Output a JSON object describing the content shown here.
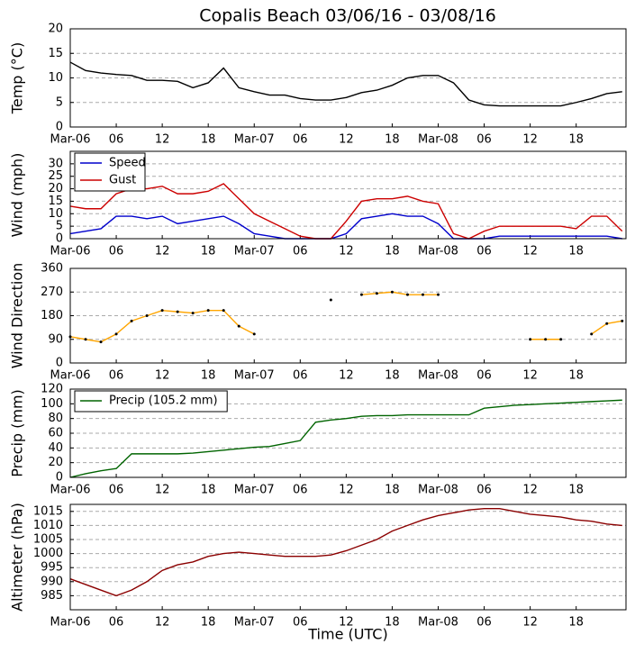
{
  "chart_data": [
    {
      "type": "line",
      "title": "Copalis Beach 03/06/16 - 03/08/16",
      "ylabel": "Temp (°C)",
      "x": [
        0,
        2,
        4,
        6,
        8,
        10,
        12,
        14,
        16,
        18,
        20,
        22,
        24,
        26,
        28,
        30,
        32,
        34,
        36,
        38,
        40,
        42,
        44,
        46,
        48,
        50,
        52,
        54,
        56,
        58,
        60,
        62,
        64,
        66,
        68,
        70,
        72
      ],
      "xlim": [
        0,
        72.5
      ],
      "xticks": [
        {
          "value": 0,
          "label": "Mar-06"
        },
        {
          "value": 6,
          "label": "06"
        },
        {
          "value": 12,
          "label": "12"
        },
        {
          "value": 18,
          "label": "18"
        },
        {
          "value": 24,
          "label": "Mar-07"
        },
        {
          "value": 30,
          "label": "06"
        },
        {
          "value": 36,
          "label": "12"
        },
        {
          "value": 42,
          "label": "18"
        },
        {
          "value": 48,
          "label": "Mar-08"
        },
        {
          "value": 54,
          "label": "06"
        },
        {
          "value": 60,
          "label": "12"
        },
        {
          "value": 66,
          "label": "18"
        }
      ],
      "ylim": [
        0,
        20
      ],
      "yticks": [
        0,
        5,
        10,
        15,
        20
      ],
      "grid": true,
      "series": [
        {
          "name": "Temp",
          "color": "#000000",
          "values": [
            13.2,
            11.5,
            11,
            10.7,
            10.5,
            9.5,
            9.5,
            9.3,
            8,
            9,
            12,
            8,
            7.2,
            6.5,
            6.5,
            5.8,
            5.5,
            5.5,
            6,
            7,
            7.5,
            8.5,
            10,
            10.5,
            10.5,
            9,
            5.5,
            4.5,
            4.3,
            4.3,
            4.3,
            4.3,
            4.3,
            5,
            5.8,
            6.8,
            7.2
          ]
        }
      ]
    },
    {
      "type": "line",
      "ylabel": "Wind (mph)",
      "legend": "upper left",
      "x": [
        0,
        2,
        4,
        6,
        8,
        10,
        12,
        14,
        16,
        18,
        20,
        22,
        24,
        26,
        28,
        30,
        32,
        34,
        36,
        38,
        40,
        42,
        44,
        46,
        48,
        50,
        52,
        54,
        56,
        58,
        60,
        62,
        64,
        66,
        68,
        70,
        72
      ],
      "xlim": [
        0,
        72.5
      ],
      "xticks": [
        {
          "value": 0,
          "label": "Mar-06"
        },
        {
          "value": 6,
          "label": "06"
        },
        {
          "value": 12,
          "label": "12"
        },
        {
          "value": 18,
          "label": "18"
        },
        {
          "value": 24,
          "label": "Mar-07"
        },
        {
          "value": 30,
          "label": "06"
        },
        {
          "value": 36,
          "label": "12"
        },
        {
          "value": 42,
          "label": "18"
        },
        {
          "value": 48,
          "label": "Mar-08"
        },
        {
          "value": 54,
          "label": "06"
        },
        {
          "value": 60,
          "label": "12"
        },
        {
          "value": 66,
          "label": "18"
        }
      ],
      "ylim": [
        0,
        35
      ],
      "yticks": [
        0,
        5,
        10,
        15,
        20,
        25,
        30
      ],
      "grid": true,
      "series": [
        {
          "name": "Speed",
          "color": "#0000cc",
          "values": [
            2,
            3,
            4,
            9,
            9,
            8,
            9,
            6,
            7,
            8,
            9,
            6,
            2,
            1,
            0,
            0,
            0,
            0,
            2,
            8,
            9,
            10,
            9,
            9,
            6,
            0,
            0,
            0,
            1,
            1,
            1,
            1,
            1,
            1,
            1,
            1,
            0
          ]
        },
        {
          "name": "Gust",
          "color": "#cc0000",
          "values": [
            13,
            12,
            12,
            18,
            20,
            20,
            21,
            18,
            18,
            19,
            22,
            16,
            10,
            7,
            4,
            1,
            0,
            0,
            7,
            15,
            16,
            16,
            17,
            15,
            14,
            2,
            0,
            3,
            5,
            5,
            5,
            5,
            5,
            4,
            9,
            9,
            3
          ]
        }
      ]
    },
    {
      "type": "line",
      "ylabel": "Wind Direction",
      "markers": true,
      "x": [
        0,
        2,
        4,
        6,
        8,
        10,
        12,
        14,
        16,
        18,
        20,
        22,
        24,
        26,
        28,
        30,
        32,
        34,
        36,
        38,
        40,
        42,
        44,
        46,
        48,
        50,
        52,
        54,
        56,
        58,
        60,
        62,
        64,
        66,
        68,
        70,
        72
      ],
      "xlim": [
        0,
        72.5
      ],
      "xticks": [
        {
          "value": 0,
          "label": "Mar-06"
        },
        {
          "value": 6,
          "label": "06"
        },
        {
          "value": 12,
          "label": "12"
        },
        {
          "value": 18,
          "label": "18"
        },
        {
          "value": 24,
          "label": "Mar-07"
        },
        {
          "value": 30,
          "label": "06"
        },
        {
          "value": 36,
          "label": "12"
        },
        {
          "value": 42,
          "label": "18"
        },
        {
          "value": 48,
          "label": "Mar-08"
        },
        {
          "value": 54,
          "label": "06"
        },
        {
          "value": 60,
          "label": "12"
        },
        {
          "value": 66,
          "label": "18"
        }
      ],
      "ylim": [
        0,
        360
      ],
      "yticks": [
        0,
        90,
        180,
        270,
        360
      ],
      "grid": true,
      "series": [
        {
          "name": "Direction",
          "color": "#ffa500",
          "values": [
            100,
            90,
            80,
            110,
            160,
            180,
            200,
            195,
            190,
            200,
            200,
            140,
            110,
            null,
            null,
            null,
            null,
            240,
            null,
            260,
            265,
            270,
            260,
            260,
            260,
            null,
            null,
            null,
            null,
            null,
            90,
            90,
            90,
            null,
            110,
            150,
            160
          ]
        }
      ]
    },
    {
      "type": "line",
      "ylabel": "Precip (mm)",
      "legend": "upper left",
      "x": [
        0,
        2,
        4,
        6,
        8,
        10,
        12,
        14,
        16,
        18,
        20,
        22,
        24,
        26,
        28,
        30,
        32,
        34,
        36,
        38,
        40,
        42,
        44,
        46,
        48,
        50,
        52,
        54,
        56,
        58,
        60,
        62,
        64,
        66,
        68,
        70,
        72
      ],
      "xlim": [
        0,
        72.5
      ],
      "xticks": [
        {
          "value": 0,
          "label": "Mar-06"
        },
        {
          "value": 6,
          "label": "06"
        },
        {
          "value": 12,
          "label": "12"
        },
        {
          "value": 18,
          "label": "18"
        },
        {
          "value": 24,
          "label": "Mar-07"
        },
        {
          "value": 30,
          "label": "06"
        },
        {
          "value": 36,
          "label": "12"
        },
        {
          "value": 42,
          "label": "18"
        },
        {
          "value": 48,
          "label": "Mar-08"
        },
        {
          "value": 54,
          "label": "06"
        },
        {
          "value": 60,
          "label": "12"
        },
        {
          "value": 66,
          "label": "18"
        }
      ],
      "ylim": [
        0,
        120
      ],
      "yticks": [
        0,
        20,
        40,
        60,
        80,
        100,
        120
      ],
      "grid": true,
      "series": [
        {
          "name": "Precip (105.2 mm)",
          "color": "#006400",
          "values": [
            0,
            5,
            9,
            12,
            32,
            32,
            32,
            32,
            33,
            35,
            37,
            39,
            41,
            42,
            46,
            50,
            75,
            78,
            80,
            83,
            84,
            84,
            85,
            85,
            85,
            85,
            85,
            94,
            96,
            98,
            99,
            100,
            101,
            102,
            103,
            104,
            105
          ]
        }
      ]
    },
    {
      "type": "line",
      "ylabel": "Altimeter (hPa)",
      "xlabel": "Time (UTC)",
      "x": [
        0,
        2,
        4,
        6,
        8,
        10,
        12,
        14,
        16,
        18,
        20,
        22,
        24,
        26,
        28,
        30,
        32,
        34,
        36,
        38,
        40,
        42,
        44,
        46,
        48,
        50,
        52,
        54,
        56,
        58,
        60,
        62,
        64,
        66,
        68,
        70,
        72
      ],
      "xlim": [
        0,
        72.5
      ],
      "xticks": [
        {
          "value": 0,
          "label": "Mar-06"
        },
        {
          "value": 6,
          "label": "06"
        },
        {
          "value": 12,
          "label": "12"
        },
        {
          "value": 18,
          "label": "18"
        },
        {
          "value": 24,
          "label": "Mar-07"
        },
        {
          "value": 30,
          "label": "06"
        },
        {
          "value": 36,
          "label": "12"
        },
        {
          "value": 42,
          "label": "18"
        },
        {
          "value": 48,
          "label": "Mar-08"
        },
        {
          "value": 54,
          "label": "06"
        },
        {
          "value": 60,
          "label": "12"
        },
        {
          "value": 66,
          "label": "18"
        }
      ],
      "ylim": [
        980,
        1017.5
      ],
      "yticks": [
        985,
        990,
        995,
        1000,
        1005,
        1010,
        1015
      ],
      "grid": true,
      "series": [
        {
          "name": "Altimeter",
          "color": "#8b0000",
          "values": [
            991,
            989,
            987,
            985,
            987,
            990,
            994,
            996,
            997,
            999,
            1000,
            1000.5,
            1000,
            999.5,
            999,
            999,
            999,
            999.5,
            1001,
            1003,
            1005,
            1008,
            1010,
            1012,
            1013.5,
            1014.5,
            1015.5,
            1016,
            1016,
            1015,
            1014,
            1013.5,
            1013,
            1012,
            1011.5,
            1010.5,
            1010
          ]
        }
      ]
    }
  ]
}
